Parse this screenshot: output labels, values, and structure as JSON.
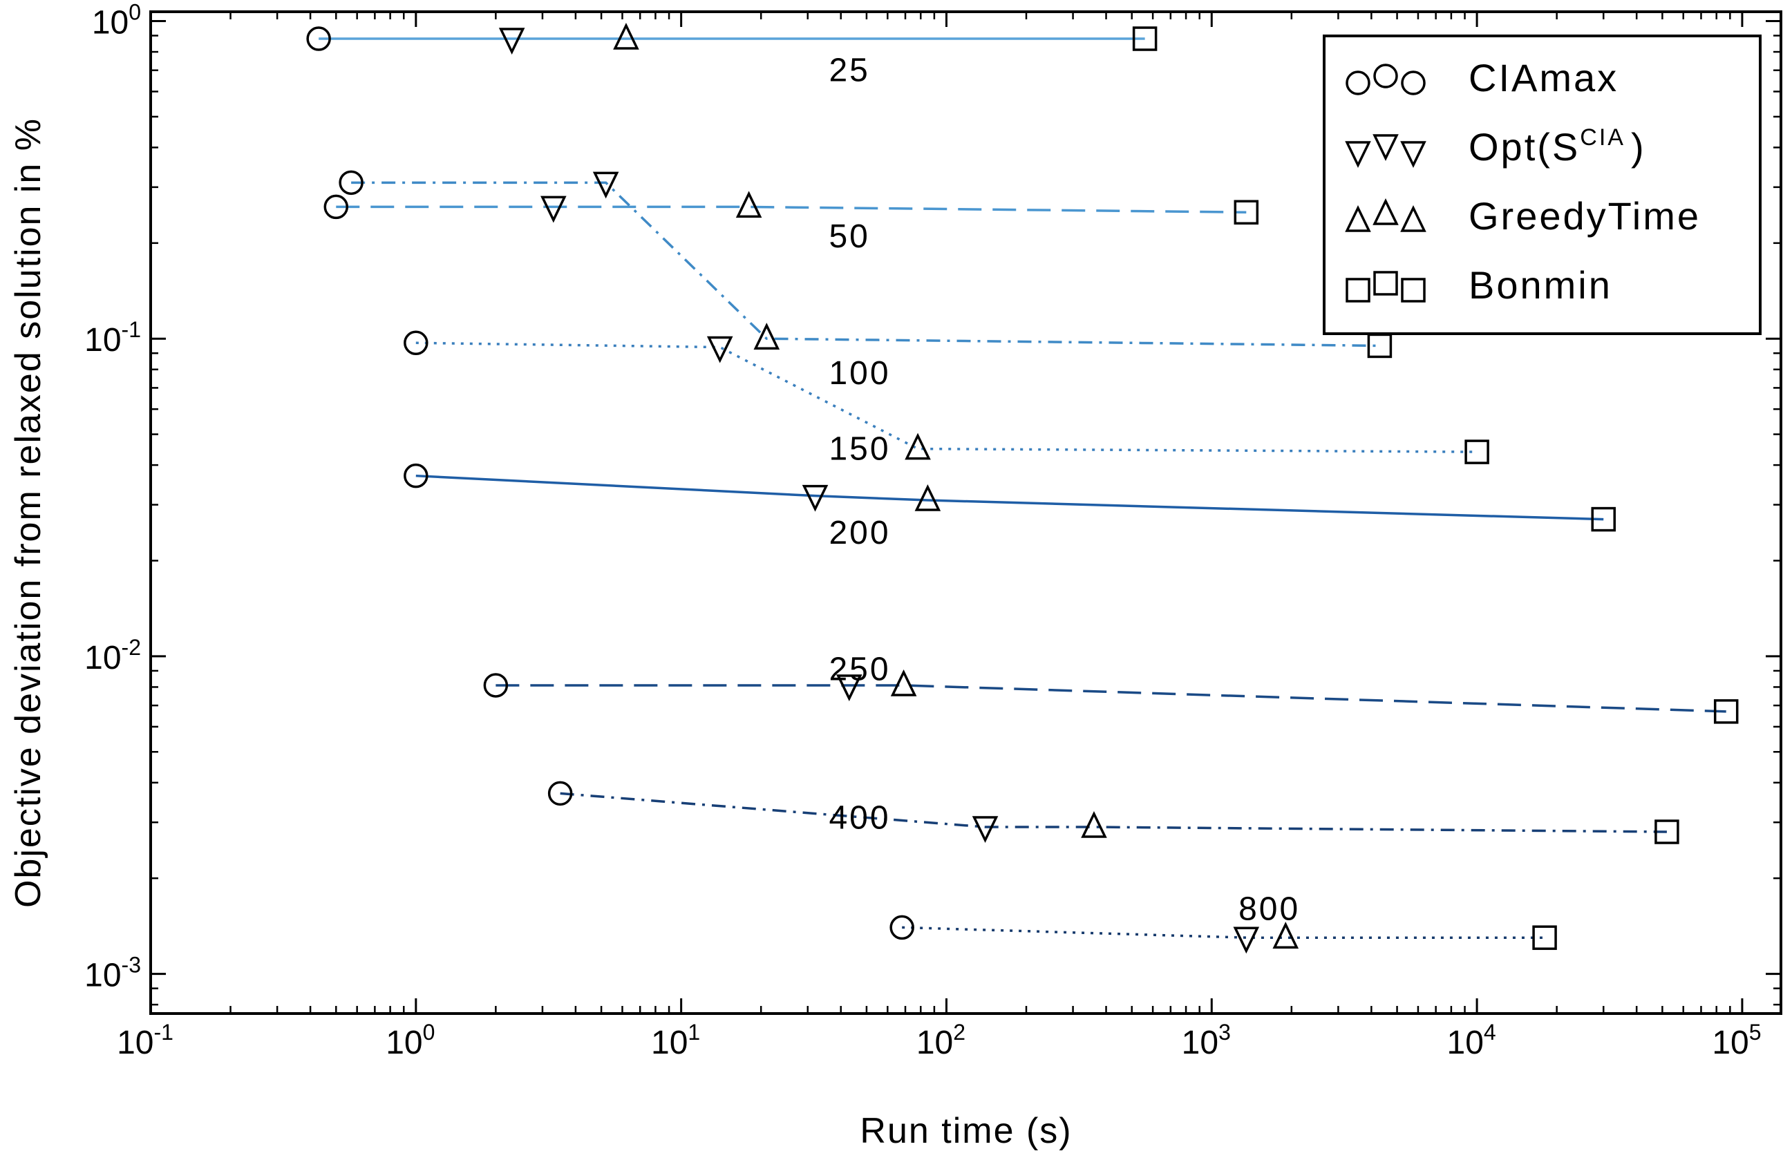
{
  "chart_data": {
    "type": "line",
    "xlabel": "Run time (s)",
    "ylabel": "Objective deviation from relaxed solution in %",
    "xscale": "log",
    "yscale": "log",
    "xlim": [
      0.1,
      140000
    ],
    "ylim": [
      0.00075,
      1.07
    ],
    "x_ticks": [
      {
        "value": 0.1,
        "base": "10",
        "exp": "-1"
      },
      {
        "value": 1,
        "base": "10",
        "exp": "0"
      },
      {
        "value": 10,
        "base": "10",
        "exp": "1"
      },
      {
        "value": 100,
        "base": "10",
        "exp": "2"
      },
      {
        "value": 1000,
        "base": "10",
        "exp": "3"
      },
      {
        "value": 10000,
        "base": "10",
        "exp": "4"
      },
      {
        "value": 100000,
        "base": "10",
        "exp": "5"
      }
    ],
    "y_ticks": [
      {
        "value": 1,
        "base": "10",
        "exp": "0"
      },
      {
        "value": 0.1,
        "base": "10",
        "exp": "-1"
      },
      {
        "value": 0.01,
        "base": "10",
        "exp": "-2"
      },
      {
        "value": 0.001,
        "base": "10",
        "exp": "-3"
      }
    ],
    "legend": {
      "position": "top-right",
      "entries": [
        {
          "marker": "circle",
          "label": "CIAmax"
        },
        {
          "marker": "triangle-down",
          "label_main": "Opt(S",
          "label_sup": "CIA",
          "label_end": ")"
        },
        {
          "marker": "triangle-up",
          "label": "GreedyTime"
        },
        {
          "marker": "square",
          "label": "Bonmin"
        }
      ]
    },
    "series": [
      {
        "name": "25",
        "color": "#5aa3d9",
        "dash": "solid",
        "CIAmax": [
          0.43,
          0.88
        ],
        "Opt_SCIA": [
          2.3,
          0.88
        ],
        "GreedyTime": [
          6.2,
          0.88
        ],
        "Bonmin": [
          560,
          0.88
        ],
        "label_at": [
          100,
          0.7
        ]
      },
      {
        "name": "50",
        "color": "#4a96d0",
        "dash": "dashed",
        "CIAmax": [
          0.5,
          0.26
        ],
        "Opt_SCIA": [
          3.3,
          0.26
        ],
        "GreedyTime": [
          18,
          0.26
        ],
        "Bonmin": [
          1350,
          0.25
        ],
        "label_at": [
          100,
          0.21
        ]
      },
      {
        "name": "100",
        "color": "#3f8ac6",
        "dash": "dashdot",
        "CIAmax": [
          0.57,
          0.31
        ],
        "Opt_SCIA": [
          5.2,
          0.31
        ],
        "GreedyTime": [
          21,
          0.1
        ],
        "Bonmin": [
          4300,
          0.095
        ],
        "label_at": [
          100,
          0.078
        ]
      },
      {
        "name": "150",
        "color": "#3a7fbd",
        "dash": "dotted",
        "CIAmax": [
          1.0,
          0.097
        ],
        "Opt_SCIA": [
          14,
          0.094
        ],
        "GreedyTime": [
          78,
          0.045
        ],
        "Bonmin": [
          10000,
          0.044
        ],
        "label_at": [
          100,
          0.045
        ]
      },
      {
        "name": "200",
        "color": "#1f5ea6",
        "dash": "solid",
        "CIAmax": [
          1.0,
          0.037
        ],
        "Opt_SCIA": [
          32,
          0.032
        ],
        "GreedyTime": [
          85,
          0.031
        ],
        "Bonmin": [
          30000,
          0.027
        ],
        "label_at": [
          100,
          0.0245
        ]
      },
      {
        "name": "250",
        "color": "#1a4a86",
        "dash": "dashed",
        "CIAmax": [
          2.0,
          0.0081
        ],
        "Opt_SCIA": [
          43,
          0.0081
        ],
        "GreedyTime": [
          69,
          0.0081
        ],
        "Bonmin": [
          87000,
          0.0067
        ],
        "label_at": [
          100,
          0.0091
        ]
      },
      {
        "name": "400",
        "color": "#173f76",
        "dash": "dashdot",
        "CIAmax": [
          3.5,
          0.0037
        ],
        "Opt_SCIA": [
          140,
          0.0029
        ],
        "GreedyTime": [
          360,
          0.0029
        ],
        "Bonmin": [
          52000,
          0.0028
        ],
        "label_at": [
          100,
          0.0031
        ]
      },
      {
        "name": "800",
        "color": "#163a6c",
        "dash": "dotted",
        "CIAmax": [
          68,
          0.0014
        ],
        "Opt_SCIA": [
          1350,
          0.0013
        ],
        "GreedyTime": [
          1900,
          0.0013
        ],
        "Bonmin": [
          18000,
          0.0013
        ],
        "label_at": [
          3500,
          0.0016
        ]
      }
    ]
  }
}
